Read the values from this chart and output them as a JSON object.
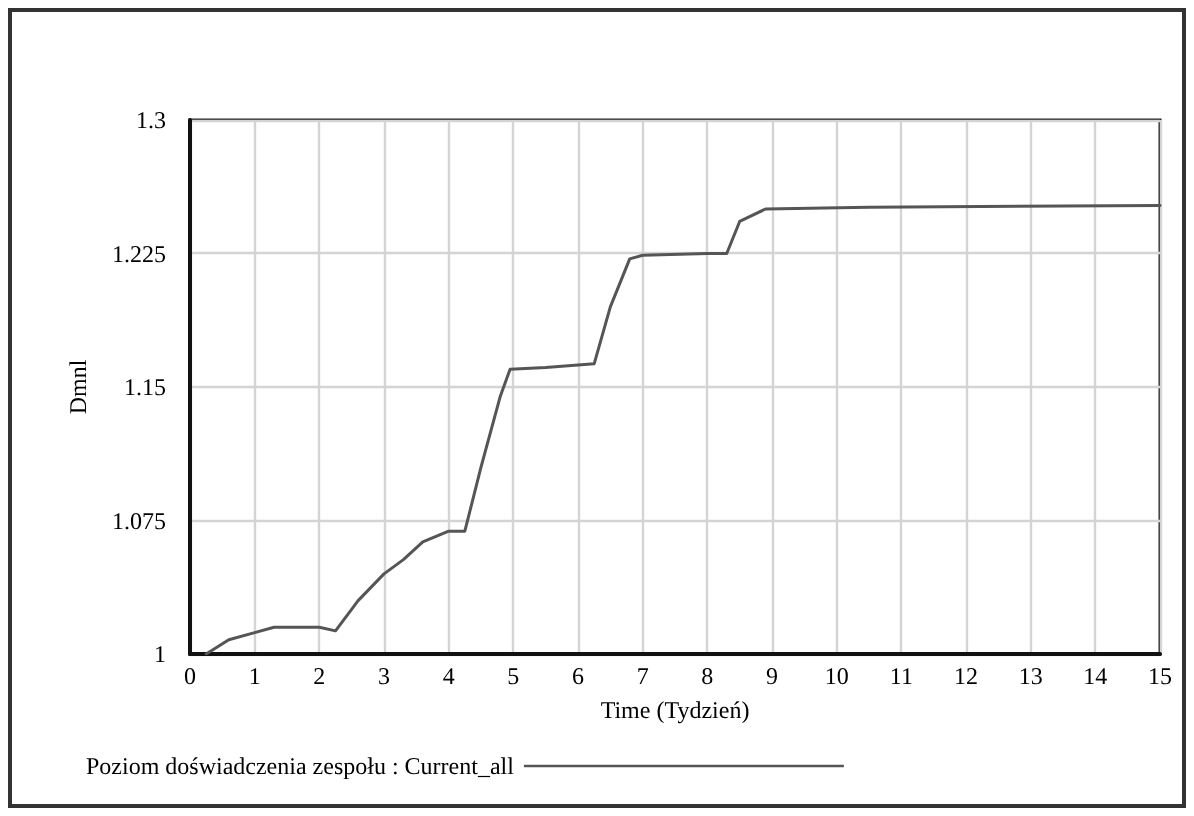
{
  "chart_data": {
    "type": "line",
    "xlabel": "Time (Tydzień)",
    "ylabel": "Dmnl",
    "x": [
      0.25,
      0.6,
      1.0,
      1.3,
      2.0,
      2.25,
      2.6,
      3.0,
      3.3,
      3.6,
      4.0,
      4.25,
      4.5,
      4.8,
      4.95,
      5.5,
      6.25,
      6.5,
      6.8,
      7.0,
      8.0,
      8.3,
      8.5,
      8.9,
      10.5,
      15
    ],
    "series": [
      {
        "name": "Poziom doświadczenia zespołu : Current_all",
        "color": "#555555",
        "values": [
          1.0,
          1.008,
          1.012,
          1.015,
          1.015,
          1.013,
          1.03,
          1.045,
          1.053,
          1.063,
          1.069,
          1.069,
          1.105,
          1.145,
          1.16,
          1.161,
          1.163,
          1.195,
          1.222,
          1.224,
          1.225,
          1.225,
          1.243,
          1.25,
          1.251,
          1.252
        ]
      }
    ],
    "xlim": [
      0,
      15
    ],
    "xticks": [
      0,
      1,
      2,
      3,
      4,
      5,
      6,
      7,
      8,
      9,
      10,
      11,
      12,
      13,
      14,
      15
    ],
    "ylim": [
      1,
      1.3
    ],
    "yticks": [
      1,
      1.075,
      1.15,
      1.225,
      1.3
    ],
    "grid": true,
    "legend": "bottom left",
    "marker": "none",
    "line_style": "solid"
  }
}
